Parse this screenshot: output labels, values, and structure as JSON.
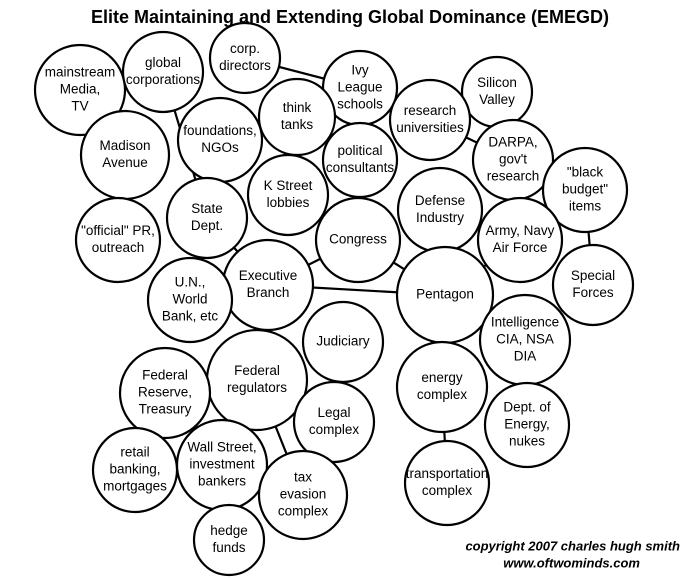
{
  "title": "Elite Maintaining and Extending Global Dominance (EMEGD)",
  "nodes": [
    {
      "label": [
        "mainstream",
        "Media,",
        "TV"
      ]
    },
    {
      "label": [
        "global",
        "corporations"
      ]
    },
    {
      "label": [
        "corp.",
        "directors"
      ]
    },
    {
      "label": [
        "Ivy",
        "League",
        "schools"
      ]
    },
    {
      "label": [
        "Silicon",
        "Valley"
      ]
    },
    {
      "label": [
        "think",
        "tanks"
      ]
    },
    {
      "label": [
        "research",
        "universities"
      ]
    },
    {
      "label": [
        "Madison",
        "Avenue"
      ]
    },
    {
      "label": [
        "foundations,",
        "NGOs"
      ]
    },
    {
      "label": [
        "political",
        "consultants"
      ]
    },
    {
      "label": [
        "DARPA,",
        "gov't",
        "research"
      ]
    },
    {
      "label": [
        "\"black",
        "budget\"",
        "items"
      ]
    },
    {
      "label": [
        "K Street",
        "lobbies"
      ]
    },
    {
      "label": [
        "Defense",
        "Industry"
      ]
    },
    {
      "label": [
        "State",
        "Dept."
      ]
    },
    {
      "label": [
        "\"official\" PR,",
        "outreach"
      ]
    },
    {
      "label": [
        "Congress"
      ]
    },
    {
      "label": [
        "Army, Navy",
        "Air Force"
      ]
    },
    {
      "label": [
        "Special",
        "Forces"
      ]
    },
    {
      "label": [
        "Executive",
        "Branch"
      ]
    },
    {
      "label": [
        "Pentagon"
      ]
    },
    {
      "label": [
        "U.N.,",
        "World",
        "Bank, etc"
      ]
    },
    {
      "label": [
        "Intelligence",
        "CIA, NSA",
        "DIA"
      ]
    },
    {
      "label": [
        "Judiciary"
      ]
    },
    {
      "label": [
        "Federal",
        "regulators"
      ]
    },
    {
      "label": [
        "Federal",
        "Reserve,",
        "Treasury"
      ]
    },
    {
      "label": [
        "energy",
        "complex"
      ]
    },
    {
      "label": [
        "Legal",
        "complex"
      ]
    },
    {
      "label": [
        "Dept. of",
        "Energy,",
        "nukes"
      ]
    },
    {
      "label": [
        "retail",
        "banking,",
        "mortgages"
      ]
    },
    {
      "label": [
        "Wall Street,",
        "investment",
        "bankers"
      ]
    },
    {
      "label": [
        "tax",
        "evasion",
        "complex"
      ]
    },
    {
      "label": [
        "transportation",
        "complex"
      ]
    },
    {
      "label": [
        "hedge",
        "funds"
      ]
    }
  ],
  "copyright": [
    "copyright 2007 charles hugh smith",
    "www.oftwominds.com"
  ]
}
